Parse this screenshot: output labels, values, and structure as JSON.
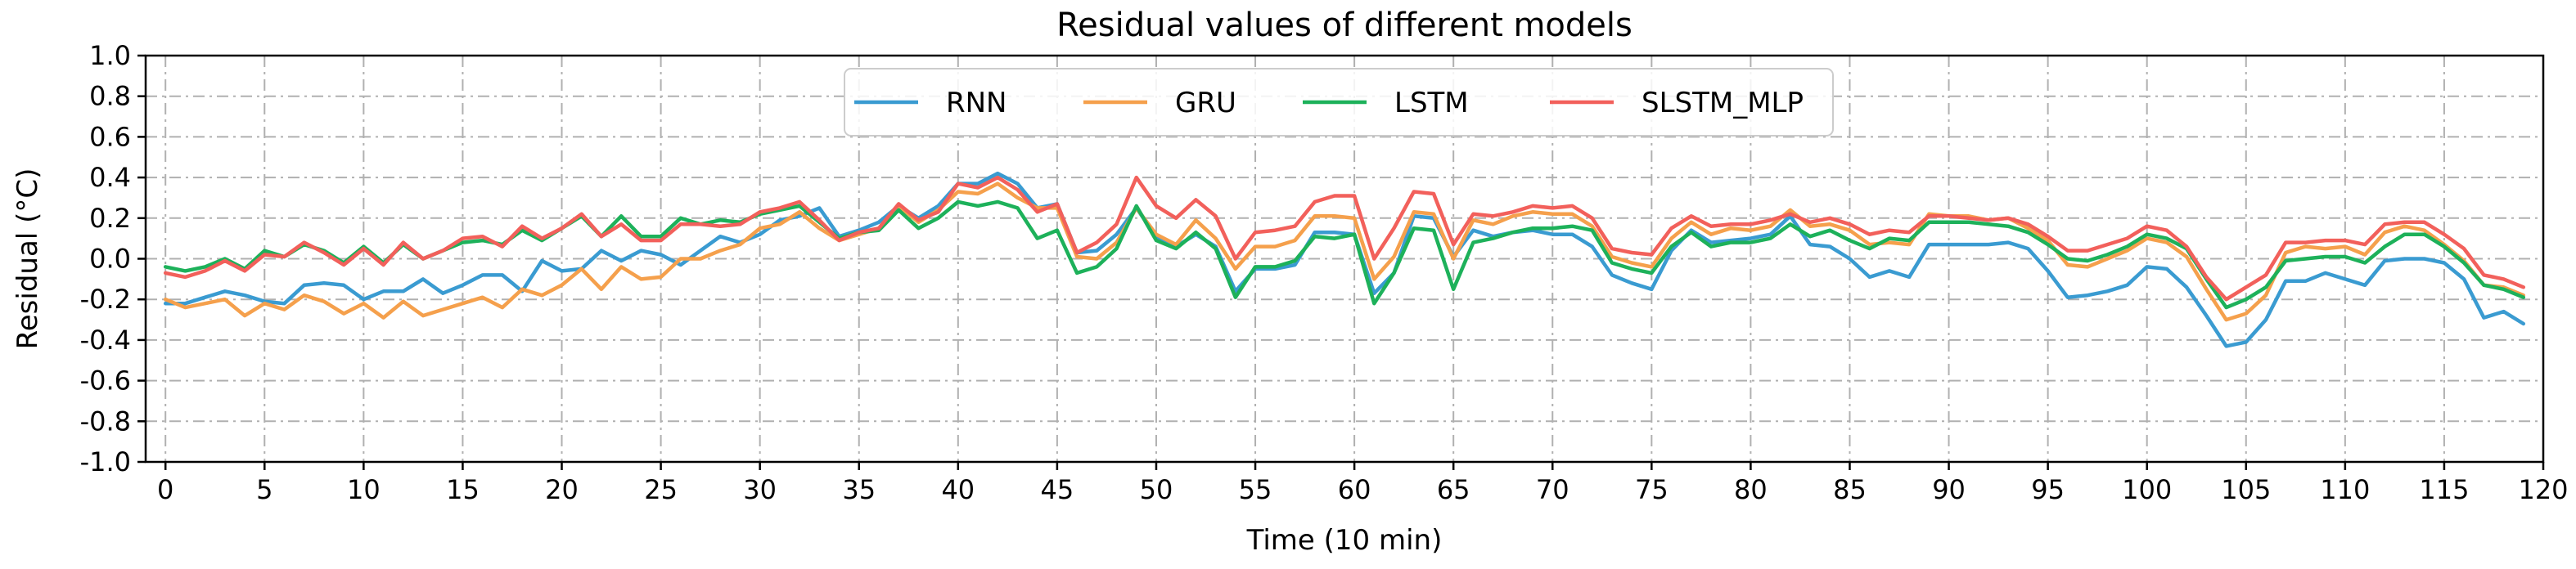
{
  "chart_data": {
    "type": "line",
    "title": "Residual values of different models",
    "xlabel": "Time (10 min)",
    "ylabel": "Residual (°C)",
    "xlim": [
      -1,
      120
    ],
    "ylim": [
      -1.0,
      1.0
    ],
    "grid": true,
    "legend_position": "top-center",
    "xticks": [
      0,
      5,
      10,
      15,
      20,
      25,
      30,
      35,
      40,
      45,
      50,
      55,
      60,
      65,
      70,
      75,
      80,
      85,
      90,
      95,
      100,
      105,
      110,
      115,
      120
    ],
    "xtick_labels": [
      "0",
      "5",
      "10",
      "15",
      "20",
      "25",
      "30",
      "35",
      "40",
      "45",
      "50",
      "55",
      "60",
      "65",
      "70",
      "75",
      "80",
      "85",
      "90",
      "95",
      "100",
      "105",
      "110",
      "115",
      "120"
    ],
    "yticks": [
      -1.0,
      -0.8,
      -0.6,
      -0.4,
      -0.2,
      0.0,
      0.2,
      0.4,
      0.6,
      0.8,
      1.0
    ],
    "ytick_labels": [
      "-1.0",
      "-0.8",
      "-0.6",
      "-0.4",
      "-0.2",
      "0.0",
      "0.2",
      "0.4",
      "0.6",
      "0.8",
      "1.0"
    ],
    "series": [
      {
        "name": "RNN",
        "color": "#3a9bd1",
        "values": [
          -0.22,
          -0.22,
          -0.19,
          -0.16,
          -0.18,
          -0.21,
          -0.22,
          -0.13,
          -0.12,
          -0.13,
          -0.2,
          -0.16,
          -0.16,
          -0.1,
          -0.17,
          -0.13,
          -0.08,
          -0.08,
          -0.16,
          -0.01,
          -0.06,
          -0.05,
          0.04,
          -0.01,
          0.04,
          0.02,
          -0.03,
          0.04,
          0.11,
          0.08,
          0.12,
          0.19,
          0.21,
          0.25,
          0.11,
          0.14,
          0.18,
          0.26,
          0.2,
          0.26,
          0.37,
          0.37,
          0.42,
          0.37,
          0.25,
          0.27,
          0.03,
          0.04,
          0.12,
          0.25,
          0.11,
          0.06,
          0.12,
          0.06,
          -0.16,
          -0.05,
          -0.05,
          -0.03,
          0.13,
          0.13,
          0.12,
          -0.17,
          -0.07,
          0.21,
          0.2,
          0.01,
          0.14,
          0.11,
          0.13,
          0.14,
          0.12,
          0.12,
          0.06,
          -0.08,
          -0.12,
          -0.15,
          0.04,
          0.14,
          0.08,
          0.09,
          0.1,
          0.12,
          0.21,
          0.07,
          0.06,
          0.0,
          -0.09,
          -0.06,
          -0.09,
          0.07,
          0.07,
          0.07,
          0.07,
          0.08,
          0.05,
          -0.06,
          -0.19,
          -0.18,
          -0.16,
          -0.13,
          -0.04,
          -0.05,
          -0.14,
          -0.28,
          -0.43,
          -0.41,
          -0.3,
          -0.11,
          -0.11,
          -0.07,
          -0.1,
          -0.13,
          -0.01,
          0.0,
          0.0,
          -0.02,
          -0.1,
          -0.29,
          -0.26,
          -0.32
        ]
      },
      {
        "name": "GRU",
        "color": "#f5a04c",
        "values": [
          -0.2,
          -0.24,
          -0.22,
          -0.2,
          -0.28,
          -0.22,
          -0.25,
          -0.18,
          -0.21,
          -0.27,
          -0.22,
          -0.29,
          -0.21,
          -0.28,
          -0.25,
          -0.22,
          -0.19,
          -0.24,
          -0.15,
          -0.18,
          -0.13,
          -0.05,
          -0.15,
          -0.04,
          -0.1,
          -0.09,
          0.0,
          0.0,
          0.04,
          0.07,
          0.15,
          0.17,
          0.23,
          0.15,
          0.09,
          0.12,
          0.15,
          0.26,
          0.18,
          0.24,
          0.33,
          0.32,
          0.37,
          0.3,
          0.25,
          0.25,
          0.01,
          0.0,
          0.08,
          0.25,
          0.12,
          0.07,
          0.19,
          0.1,
          -0.05,
          0.06,
          0.06,
          0.09,
          0.21,
          0.21,
          0.2,
          -0.1,
          0.01,
          0.23,
          0.22,
          0.0,
          0.19,
          0.17,
          0.21,
          0.23,
          0.22,
          0.22,
          0.16,
          0.01,
          -0.02,
          -0.04,
          0.1,
          0.18,
          0.12,
          0.15,
          0.14,
          0.16,
          0.24,
          0.16,
          0.17,
          0.14,
          0.07,
          0.08,
          0.07,
          0.22,
          0.21,
          0.21,
          0.19,
          0.2,
          0.15,
          0.09,
          -0.03,
          -0.04,
          0.0,
          0.04,
          0.1,
          0.08,
          0.01,
          -0.15,
          -0.3,
          -0.27,
          -0.18,
          0.03,
          0.06,
          0.05,
          0.06,
          0.02,
          0.13,
          0.16,
          0.14,
          0.07,
          -0.01,
          -0.13,
          -0.14,
          -0.18
        ]
      },
      {
        "name": "LSTM",
        "color": "#1db15a",
        "values": [
          -0.04,
          -0.06,
          -0.04,
          0.0,
          -0.05,
          0.04,
          0.01,
          0.07,
          0.04,
          -0.02,
          0.06,
          -0.02,
          0.07,
          0.0,
          0.04,
          0.08,
          0.09,
          0.07,
          0.14,
          0.09,
          0.15,
          0.21,
          0.11,
          0.21,
          0.11,
          0.11,
          0.2,
          0.17,
          0.19,
          0.18,
          0.22,
          0.24,
          0.26,
          0.18,
          0.1,
          0.13,
          0.14,
          0.24,
          0.15,
          0.2,
          0.28,
          0.26,
          0.28,
          0.25,
          0.1,
          0.14,
          -0.07,
          -0.04,
          0.05,
          0.26,
          0.09,
          0.05,
          0.13,
          0.05,
          -0.19,
          -0.04,
          -0.04,
          -0.01,
          0.11,
          0.1,
          0.12,
          -0.22,
          -0.07,
          0.15,
          0.14,
          -0.15,
          0.08,
          0.1,
          0.13,
          0.15,
          0.15,
          0.16,
          0.14,
          -0.02,
          -0.05,
          -0.07,
          0.06,
          0.13,
          0.06,
          0.08,
          0.08,
          0.1,
          0.17,
          0.11,
          0.14,
          0.09,
          0.05,
          0.1,
          0.09,
          0.18,
          0.18,
          0.18,
          0.17,
          0.16,
          0.13,
          0.07,
          0.0,
          -0.01,
          0.02,
          0.06,
          0.12,
          0.1,
          0.05,
          -0.1,
          -0.24,
          -0.2,
          -0.14,
          -0.01,
          0.0,
          0.01,
          0.01,
          -0.02,
          0.06,
          0.12,
          0.12,
          0.06,
          -0.02,
          -0.13,
          -0.15,
          -0.19
        ]
      },
      {
        "name": "SLSTM_MLP",
        "color": "#f2605b",
        "values": [
          -0.07,
          -0.09,
          -0.06,
          -0.01,
          -0.06,
          0.02,
          0.01,
          0.08,
          0.03,
          -0.03,
          0.05,
          -0.03,
          0.08,
          0.0,
          0.04,
          0.1,
          0.11,
          0.06,
          0.16,
          0.1,
          0.15,
          0.22,
          0.11,
          0.17,
          0.09,
          0.09,
          0.17,
          0.17,
          0.16,
          0.17,
          0.23,
          0.25,
          0.28,
          0.19,
          0.09,
          0.13,
          0.15,
          0.27,
          0.19,
          0.23,
          0.37,
          0.35,
          0.4,
          0.34,
          0.23,
          0.27,
          0.03,
          0.08,
          0.17,
          0.4,
          0.26,
          0.2,
          0.29,
          0.21,
          0.0,
          0.13,
          0.14,
          0.16,
          0.28,
          0.31,
          0.31,
          0.0,
          0.15,
          0.33,
          0.32,
          0.07,
          0.22,
          0.21,
          0.23,
          0.26,
          0.25,
          0.26,
          0.2,
          0.05,
          0.03,
          0.02,
          0.15,
          0.21,
          0.16,
          0.17,
          0.17,
          0.19,
          0.22,
          0.18,
          0.2,
          0.17,
          0.12,
          0.14,
          0.13,
          0.21,
          0.21,
          0.2,
          0.19,
          0.2,
          0.17,
          0.11,
          0.04,
          0.04,
          0.07,
          0.1,
          0.16,
          0.14,
          0.06,
          -0.09,
          -0.2,
          -0.14,
          -0.08,
          0.08,
          0.08,
          0.09,
          0.09,
          0.07,
          0.17,
          0.18,
          0.18,
          0.12,
          0.05,
          -0.08,
          -0.1,
          -0.14
        ]
      }
    ]
  }
}
